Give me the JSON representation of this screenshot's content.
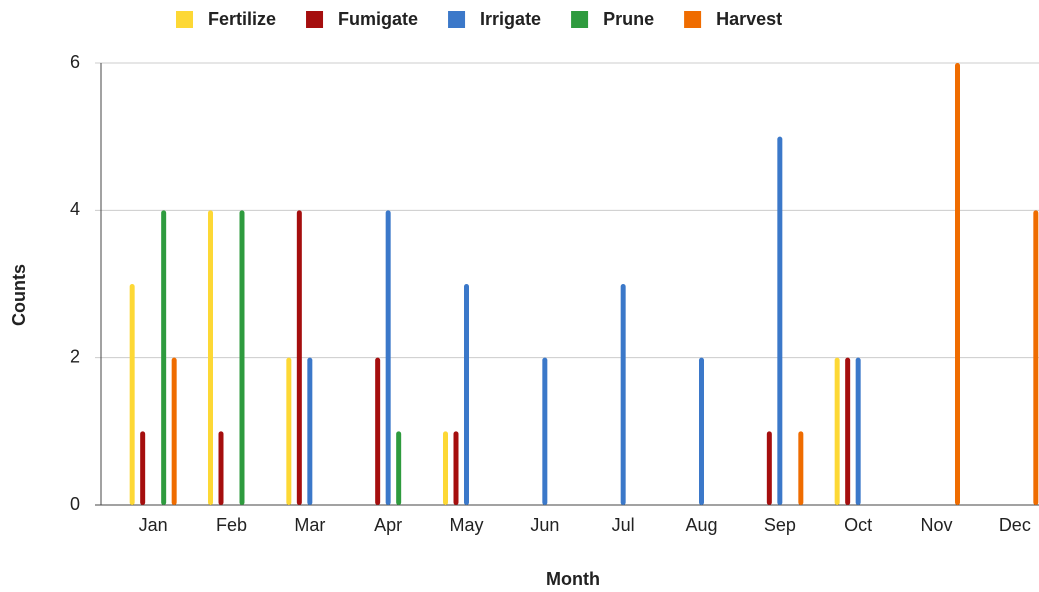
{
  "chart_data": {
    "type": "bar",
    "x_label": "Month",
    "y_label": "Counts",
    "categories": [
      "Jan",
      "Feb",
      "Mar",
      "Apr",
      "May",
      "Jun",
      "Jul",
      "Aug",
      "Sep",
      "Oct",
      "Nov",
      "Dec"
    ],
    "series": [
      {
        "name": "Fertilize",
        "color": "#fdd835",
        "values": [
          3,
          4,
          2,
          0,
          1,
          0,
          0,
          0,
          0,
          2,
          0,
          0
        ]
      },
      {
        "name": "Fumigate",
        "color": "#a50e0e",
        "values": [
          1,
          1,
          4,
          2,
          1,
          0,
          0,
          0,
          1,
          2,
          0,
          0
        ]
      },
      {
        "name": "Irrigate",
        "color": "#3b78c9",
        "values": [
          0,
          0,
          2,
          4,
          3,
          2,
          3,
          2,
          5,
          2,
          0,
          0
        ]
      },
      {
        "name": "Prune",
        "color": "#2e9b3e",
        "values": [
          4,
          4,
          0,
          1,
          0,
          0,
          0,
          0,
          0,
          0,
          0,
          0
        ]
      },
      {
        "name": "Harvest",
        "color": "#ef6c00",
        "values": [
          2,
          0,
          0,
          0,
          0,
          0,
          0,
          0,
          1,
          0,
          6,
          4
        ]
      }
    ],
    "ylim": [
      0,
      6
    ],
    "yticks": [
      0,
      2,
      4,
      6
    ],
    "grid": true
  }
}
